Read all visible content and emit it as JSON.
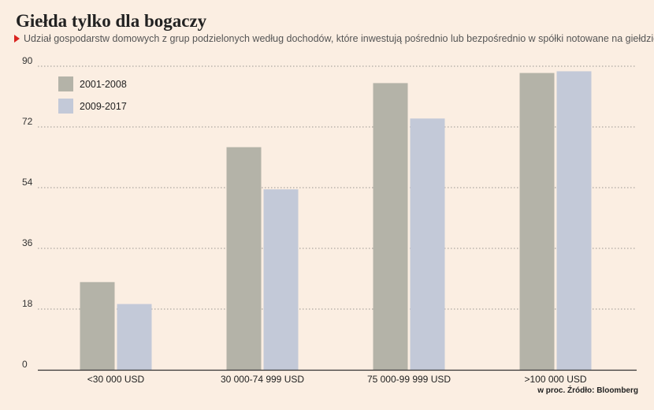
{
  "header": {
    "title": "Giełda tylko dla bogaczy",
    "subtitle": "Udział gospodarstw domowych z grup podzielonych według dochodów, które inwestują pośrednio lub bezpośrednio w spółki notowane na giełdzie"
  },
  "footnote": "w proc. Źródło: Bloomberg",
  "colors": {
    "series_2001_2008": "#b4b3a8",
    "series_2009_2017": "#c3c9d8",
    "accent_marker": "#d9231f",
    "background": "#fbeee2"
  },
  "chart_data": {
    "type": "bar",
    "title": "Giełda tylko dla bogaczy",
    "xlabel": "",
    "ylabel": "",
    "categories": [
      "<30 000 USD",
      "30 000-74 999 USD",
      "75 000-99 999 USD",
      ">100 000 USD"
    ],
    "series": [
      {
        "name": "2001-2008",
        "values": [
          26,
          66,
          85,
          88
        ]
      },
      {
        "name": "2009-2017",
        "values": [
          19.5,
          53.5,
          74.5,
          88.5
        ]
      }
    ],
    "ylim": [
      0,
      90
    ],
    "yticks": [
      "0",
      "18",
      "36",
      "54",
      "72",
      "90"
    ],
    "grid": true,
    "legend_position": "top-left"
  }
}
